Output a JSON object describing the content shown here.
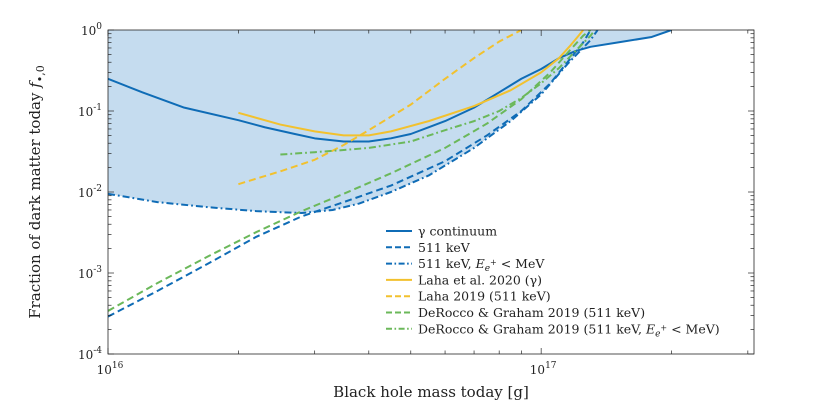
{
  "chart_data": {
    "type": "line",
    "title": "",
    "xlabel": "Black hole mass today [g]",
    "ylabel": "Fraction of dark matter today f•,0",
    "ylabel_parts": {
      "text": "Fraction of dark matter today ",
      "symbol": "f",
      "subscript": "•,0"
    },
    "xscale": "log",
    "yscale": "log",
    "xlim": [
      1e+16,
      3.1e+17
    ],
    "ylim": [
      0.0001,
      1
    ],
    "x_ticks": [
      {
        "value": 1e+16,
        "base": "10",
        "exp": "16"
      },
      {
        "value": 1e+17,
        "base": "10",
        "exp": "17"
      }
    ],
    "y_ticks": [
      {
        "value": 0.0001,
        "base": "10",
        "exp": "-4"
      },
      {
        "value": 0.001,
        "base": "10",
        "exp": "-3"
      },
      {
        "value": 0.01,
        "base": "10",
        "exp": "-2"
      },
      {
        "value": 0.1,
        "base": "10",
        "exp": "-1"
      },
      {
        "value": 1,
        "base": "10",
        "exp": "0"
      }
    ],
    "legend_position": "bottom-right",
    "excluded_region": {
      "name": "excluded region",
      "color": "#c5dcef"
    },
    "series": [
      {
        "name": "γ continuum",
        "color": "#0f6cb6",
        "style": "solid",
        "points": [
          [
            1e+16,
            0.25
          ],
          [
            1.2e+16,
            0.17
          ],
          [
            1.5e+16,
            0.11
          ],
          [
            2e+16,
            0.077
          ],
          [
            2.3e+16,
            0.063
          ],
          [
            2.7e+16,
            0.052
          ],
          [
            3e+16,
            0.046
          ],
          [
            3.5e+16,
            0.042
          ],
          [
            4e+16,
            0.042
          ],
          [
            4.5e+16,
            0.046
          ],
          [
            5e+16,
            0.052
          ],
          [
            6e+16,
            0.075
          ],
          [
            7e+16,
            0.11
          ],
          [
            8e+16,
            0.17
          ],
          [
            9e+16,
            0.25
          ],
          [
            1e+17,
            0.33
          ],
          [
            1.1e+17,
            0.45
          ],
          [
            1.2e+17,
            0.55
          ],
          [
            1.3e+17,
            0.62
          ],
          [
            1.5e+17,
            0.7
          ],
          [
            1.8e+17,
            0.82
          ],
          [
            2e+17,
            1.0
          ]
        ]
      },
      {
        "name": "511 keV",
        "color": "#0f6cb6",
        "style": "dashed",
        "points": [
          [
            1e+16,
            0.00029
          ],
          [
            1.3e+16,
            0.0006
          ],
          [
            1.7e+16,
            0.0013
          ],
          [
            2.2e+16,
            0.0028
          ],
          [
            2.8e+16,
            0.005
          ],
          [
            3.5e+16,
            0.0075
          ],
          [
            4.5e+16,
            0.012
          ],
          [
            6e+16,
            0.024
          ],
          [
            7.5e+16,
            0.05
          ],
          [
            9e+16,
            0.1
          ],
          [
            1.05e+17,
            0.22
          ],
          [
            1.15e+17,
            0.4
          ],
          [
            1.25e+17,
            0.7
          ],
          [
            1.3e+17,
            1.0
          ]
        ]
      },
      {
        "name": "511 keV, E_{e⁺} < MeV",
        "label_main": "511 keV, ",
        "label_symbol": "E",
        "label_sub": "e",
        "label_sup": "+",
        "label_tail": " < MeV",
        "color": "#0f6cb6",
        "style": "dashdot",
        "points": [
          [
            1e+16,
            0.0095
          ],
          [
            1.3e+16,
            0.0075
          ],
          [
            1.7e+16,
            0.0065
          ],
          [
            2.2e+16,
            0.0058
          ],
          [
            2.8e+16,
            0.0055
          ],
          [
            3.3e+16,
            0.006
          ],
          [
            3.8e+16,
            0.0072
          ],
          [
            4.5e+16,
            0.01
          ],
          [
            5.5e+16,
            0.016
          ],
          [
            7e+16,
            0.035
          ],
          [
            8.5e+16,
            0.075
          ],
          [
            1e+17,
            0.16
          ],
          [
            1.15e+17,
            0.38
          ],
          [
            1.3e+17,
            0.75
          ],
          [
            1.35e+17,
            1.0
          ]
        ]
      },
      {
        "name": "Laha et al. 2020 (γ)",
        "color": "#f2c12e",
        "style": "solid",
        "points": [
          [
            2e+16,
            0.095
          ],
          [
            2.5e+16,
            0.068
          ],
          [
            3e+16,
            0.056
          ],
          [
            3.5e+16,
            0.05
          ],
          [
            4e+16,
            0.05
          ],
          [
            4.5e+16,
            0.056
          ],
          [
            5.5e+16,
            0.075
          ],
          [
            7e+16,
            0.115
          ],
          [
            8.5e+16,
            0.18
          ],
          [
            1e+17,
            0.3
          ],
          [
            1.1e+17,
            0.45
          ],
          [
            1.17e+17,
            0.65
          ],
          [
            1.22e+17,
            0.85
          ],
          [
            1.25e+17,
            1.0
          ]
        ]
      },
      {
        "name": "Laha 2019 (511 keV)",
        "color": "#f2c12e",
        "style": "dashed",
        "points": [
          [
            2e+16,
            0.0125
          ],
          [
            2.5e+16,
            0.018
          ],
          [
            3e+16,
            0.025
          ],
          [
            3.5e+16,
            0.038
          ],
          [
            4e+16,
            0.058
          ],
          [
            5e+16,
            0.12
          ],
          [
            6e+16,
            0.25
          ],
          [
            7e+16,
            0.45
          ],
          [
            8e+16,
            0.72
          ],
          [
            9e+16,
            1.0
          ]
        ]
      },
      {
        "name": "DeRocco & Graham 2019 (511 keV)",
        "color": "#6bb85a",
        "style": "dashed",
        "points": [
          [
            1e+16,
            0.00034
          ],
          [
            1.3e+16,
            0.00075
          ],
          [
            1.7e+16,
            0.0016
          ],
          [
            2.2e+16,
            0.0032
          ],
          [
            2.8e+16,
            0.0058
          ],
          [
            3.5e+16,
            0.0095
          ],
          [
            4.5e+16,
            0.017
          ],
          [
            6e+16,
            0.035
          ],
          [
            7.5e+16,
            0.07
          ],
          [
            9e+16,
            0.14
          ],
          [
            1.05e+17,
            0.3
          ],
          [
            1.15e+17,
            0.52
          ],
          [
            1.25e+17,
            0.85
          ],
          [
            1.3e+17,
            1.0
          ]
        ]
      },
      {
        "name": "DeRocco & Graham 2019 (511 keV, E_{e⁺} < MeV)",
        "label_main": "DeRocco & Graham 2019 (511 keV, ",
        "label_symbol": "E",
        "label_sub": "e",
        "label_sup": "+",
        "label_tail": " < MeV)",
        "color": "#6bb85a",
        "style": "dashdot",
        "points": [
          [
            2.5e+16,
            0.029
          ],
          [
            3e+16,
            0.031
          ],
          [
            3.5e+16,
            0.033
          ],
          [
            4e+16,
            0.035
          ],
          [
            5e+16,
            0.042
          ],
          [
            6e+16,
            0.058
          ],
          [
            7e+16,
            0.075
          ],
          [
            8e+16,
            0.1
          ],
          [
            9e+16,
            0.145
          ],
          [
            1e+17,
            0.22
          ],
          [
            1.1e+17,
            0.34
          ],
          [
            1.2e+17,
            0.55
          ],
          [
            1.3e+17,
            0.85
          ],
          [
            1.33e+17,
            1.0
          ]
        ]
      }
    ]
  }
}
